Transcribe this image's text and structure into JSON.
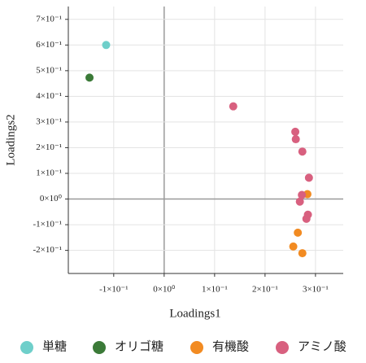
{
  "chart_data": {
    "type": "scatter",
    "xlabel": "Loadings1",
    "ylabel": "Loadings2",
    "xlim": [
      -0.19,
      0.355
    ],
    "ylim": [
      -0.29,
      0.75
    ],
    "xticks": [
      {
        "value": -0.1,
        "label": "-1×10⁻¹"
      },
      {
        "value": 0,
        "label": "0×10⁰"
      },
      {
        "value": 0.1,
        "label": "1×10⁻¹"
      },
      {
        "value": 0.2,
        "label": "2×10⁻¹"
      },
      {
        "value": 0.3,
        "label": "3×10⁻¹"
      }
    ],
    "yticks": [
      {
        "value": -0.2,
        "label": "-2×10⁻¹"
      },
      {
        "value": -0.1,
        "label": "-1×10⁻¹"
      },
      {
        "value": 0,
        "label": "0×10⁰"
      },
      {
        "value": 0.1,
        "label": "1×10⁻¹"
      },
      {
        "value": 0.2,
        "label": "2×10⁻¹"
      },
      {
        "value": 0.3,
        "label": "3×10⁻¹"
      },
      {
        "value": 0.4,
        "label": "4×10⁻¹"
      },
      {
        "value": 0.5,
        "label": "5×10⁻¹"
      },
      {
        "value": 0.6,
        "label": "6×10⁻¹"
      },
      {
        "value": 0.7,
        "label": "7×10⁻¹"
      }
    ],
    "grid": true,
    "series": [
      {
        "name": "単糖",
        "color": "#6fcfca",
        "x": [
          -0.115
        ],
        "values": [
          0.6
        ]
      },
      {
        "name": "オリゴ糖",
        "color": "#3b7a38",
        "x": [
          -0.148
        ],
        "values": [
          0.473
        ]
      },
      {
        "name": "有機酸",
        "color": "#f28b22",
        "x": [
          0.284,
          0.265,
          0.256,
          0.274
        ],
        "values": [
          0.019,
          -0.131,
          -0.185,
          -0.211
        ]
      },
      {
        "name": "アミノ酸",
        "color": "#d8607f",
        "x": [
          0.137,
          0.26,
          0.261,
          0.274,
          0.287,
          0.273,
          0.269,
          0.285,
          0.282
        ],
        "values": [
          0.361,
          0.262,
          0.233,
          0.185,
          0.083,
          0.016,
          -0.01,
          -0.061,
          -0.077
        ]
      }
    ]
  }
}
